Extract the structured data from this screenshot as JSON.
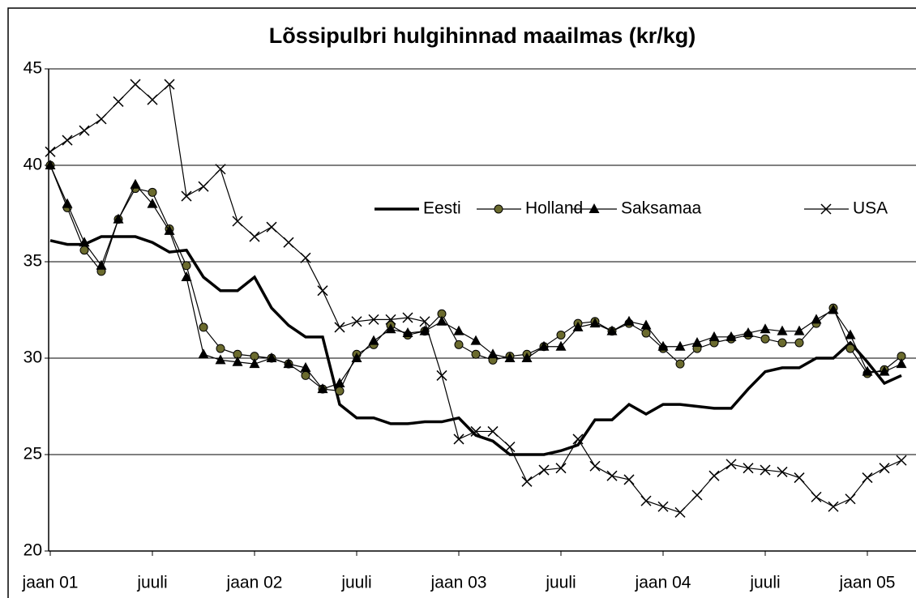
{
  "chart_data": {
    "type": "line",
    "title": "Lõssipulbri hulgihinnad maailmas (kr/kg)",
    "categories": [
      "jaan 01",
      null,
      null,
      null,
      null,
      null,
      "juuli",
      null,
      null,
      null,
      null,
      null,
      "jaan 02",
      null,
      null,
      null,
      null,
      null,
      "juuli",
      null,
      null,
      null,
      null,
      null,
      "jaan 03",
      null,
      null,
      null,
      null,
      null,
      "juuli",
      null,
      null,
      null,
      null,
      null,
      "jaan 04",
      null,
      null,
      null,
      null,
      null,
      "juuli",
      null,
      null,
      null,
      null,
      null,
      "jaan 05",
      null,
      null
    ],
    "series": [
      {
        "name": "Eesti",
        "color": "#000000",
        "line_width": 3.5,
        "marker": "none",
        "values": [
          36.1,
          35.9,
          35.9,
          36.3,
          36.3,
          36.3,
          36.0,
          35.5,
          35.6,
          34.2,
          33.5,
          33.5,
          34.2,
          32.6,
          31.7,
          31.1,
          31.1,
          27.6,
          26.9,
          26.9,
          26.6,
          26.6,
          26.7,
          26.7,
          26.9,
          26.0,
          25.7,
          25.0,
          25.0,
          25.0,
          25.2,
          25.5,
          26.8,
          26.8,
          27.6,
          27.1,
          27.6,
          27.6,
          27.5,
          27.4,
          27.4,
          28.4,
          29.3,
          29.5,
          29.5,
          30.0,
          30.0,
          30.8,
          29.8,
          28.7,
          29.1
        ]
      },
      {
        "name": "Holland",
        "color": "#000000",
        "marker_color": "#6b6b2e",
        "line_width": 1.2,
        "marker": "circle",
        "values": [
          40.0,
          37.8,
          35.6,
          34.5,
          37.2,
          38.8,
          38.6,
          36.7,
          34.8,
          31.6,
          30.5,
          30.2,
          30.1,
          30.0,
          29.7,
          29.1,
          28.4,
          28.3,
          30.2,
          30.7,
          31.7,
          31.2,
          31.4,
          32.3,
          30.7,
          30.2,
          29.9,
          30.1,
          30.2,
          30.6,
          31.2,
          31.8,
          31.9,
          31.4,
          31.8,
          31.3,
          30.5,
          29.7,
          30.5,
          30.8,
          31.0,
          31.2,
          31.0,
          30.8,
          30.8,
          31.8,
          32.6,
          30.5,
          29.2,
          29.4,
          30.1
        ]
      },
      {
        "name": "Saksamaa",
        "color": "#000000",
        "marker_color": "#000000",
        "line_width": 1.2,
        "marker": "triangle",
        "values": [
          40.0,
          38.0,
          36.0,
          34.8,
          37.2,
          39.0,
          38.0,
          36.6,
          34.2,
          30.2,
          29.9,
          29.8,
          29.7,
          30.0,
          29.7,
          29.5,
          28.4,
          28.7,
          30.0,
          30.9,
          31.5,
          31.3,
          31.4,
          31.9,
          31.4,
          30.9,
          30.2,
          30.0,
          30.0,
          30.6,
          30.6,
          31.6,
          31.8,
          31.4,
          31.9,
          31.7,
          30.6,
          30.6,
          30.8,
          31.1,
          31.1,
          31.3,
          31.5,
          31.4,
          31.4,
          32.0,
          32.5,
          31.2,
          29.3,
          29.3,
          29.7
        ]
      },
      {
        "name": "USA",
        "color": "#000000",
        "marker_color": "#000000",
        "line_width": 1.2,
        "marker": "x",
        "values": [
          40.7,
          41.3,
          41.8,
          42.4,
          43.3,
          44.2,
          43.4,
          44.2,
          38.4,
          38.9,
          39.8,
          37.1,
          36.3,
          36.8,
          36.0,
          35.2,
          33.5,
          31.6,
          31.9,
          32.0,
          32.0,
          32.1,
          31.9,
          29.1,
          25.8,
          26.2,
          26.2,
          25.4,
          23.6,
          24.2,
          24.3,
          25.8,
          24.4,
          23.9,
          23.7,
          22.6,
          22.3,
          22.0,
          22.9,
          23.9,
          24.5,
          24.3,
          24.2,
          24.1,
          23.8,
          22.8,
          22.3,
          22.7,
          23.8,
          24.3,
          24.7
        ]
      }
    ],
    "ylim": [
      20,
      45
    ],
    "yticks": [
      20,
      25,
      30,
      35,
      40,
      45
    ],
    "grid": true,
    "legend": "right"
  }
}
